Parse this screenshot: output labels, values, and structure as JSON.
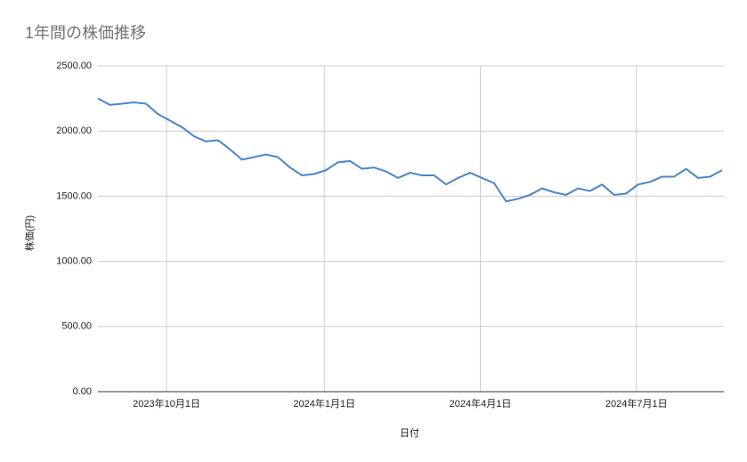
{
  "chart_data": {
    "type": "line",
    "title": "1年間の株価推移",
    "x_label": "日付",
    "y_label": "株価(円)",
    "x": [
      "2023-08-22",
      "2023-08-29",
      "2023-09-05",
      "2023-09-12",
      "2023-09-19",
      "2023-09-26",
      "2023-10-03",
      "2023-10-10",
      "2023-10-17",
      "2023-10-24",
      "2023-10-31",
      "2023-11-07",
      "2023-11-14",
      "2023-11-21",
      "2023-11-28",
      "2023-12-05",
      "2023-12-12",
      "2023-12-19",
      "2023-12-26",
      "2024-01-02",
      "2024-01-09",
      "2024-01-16",
      "2024-01-23",
      "2024-01-30",
      "2024-02-06",
      "2024-02-13",
      "2024-02-20",
      "2024-02-27",
      "2024-03-05",
      "2024-03-12",
      "2024-03-19",
      "2024-03-26",
      "2024-04-02",
      "2024-04-09",
      "2024-04-16",
      "2024-04-23",
      "2024-04-30",
      "2024-05-07",
      "2024-05-14",
      "2024-05-21",
      "2024-05-28",
      "2024-06-04",
      "2024-06-11",
      "2024-06-18",
      "2024-06-25",
      "2024-07-02",
      "2024-07-09",
      "2024-07-16",
      "2024-07-23",
      "2024-07-30",
      "2024-08-06",
      "2024-08-13",
      "2024-08-20"
    ],
    "series": [
      {
        "name": "株価",
        "color": "#4a86c8",
        "values": [
          2250,
          2200,
          2210,
          2220,
          2210,
          2130,
          2080,
          2030,
          1960,
          1920,
          1930,
          1860,
          1780,
          1800,
          1820,
          1800,
          1720,
          1660,
          1670,
          1700,
          1760,
          1770,
          1710,
          1720,
          1690,
          1640,
          1680,
          1660,
          1660,
          1590,
          1640,
          1680,
          1640,
          1600,
          1460,
          1480,
          1510,
          1560,
          1530,
          1510,
          1560,
          1540,
          1590,
          1510,
          1520,
          1590,
          1610,
          1650,
          1650,
          1710,
          1640,
          1650,
          1700
        ]
      }
    ],
    "xlim": [
      "2023-08-22",
      "2024-08-21"
    ],
    "xticks": [
      {
        "value": "2023-10-01",
        "label": "2023年10月1日"
      },
      {
        "value": "2024-01-01",
        "label": "2024年1月1日"
      },
      {
        "value": "2024-04-01",
        "label": "2024年4月1日"
      },
      {
        "value": "2024-07-01",
        "label": "2024年7月1日"
      }
    ],
    "ylim": [
      0,
      2500
    ],
    "yticks": [
      {
        "value": 0,
        "label": "0.00"
      },
      {
        "value": 500,
        "label": "500.00"
      },
      {
        "value": 1000,
        "label": "1000.00"
      },
      {
        "value": 1500,
        "label": "1500.00"
      },
      {
        "value": 2000,
        "label": "2000.00"
      },
      {
        "value": 2500,
        "label": "2500.00"
      }
    ],
    "grid": true
  }
}
